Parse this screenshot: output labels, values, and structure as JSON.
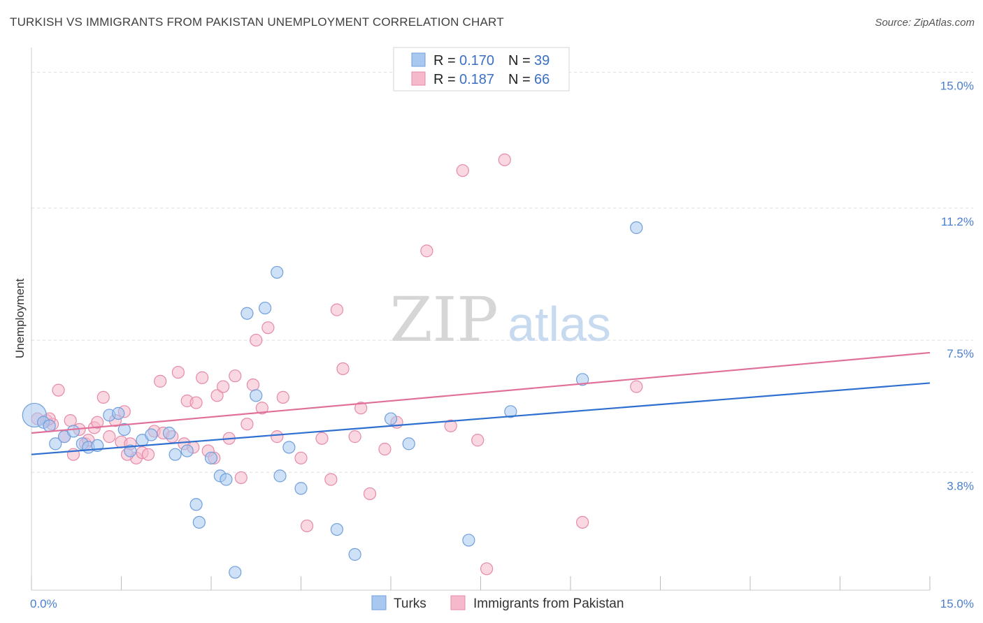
{
  "title": "TURKISH VS IMMIGRANTS FROM PAKISTAN UNEMPLOYMENT CORRELATION CHART",
  "source": "Source: ZipAtlas.com",
  "watermark": {
    "zip": "ZIP",
    "atlas": "atlas"
  },
  "colors": {
    "turks_fill": "#a8c8f0",
    "turks_stroke": "#6f9fdc",
    "turks_line": "#2f6fd0",
    "pak_fill": "#f6b8cb",
    "pak_stroke": "#e58aa8",
    "pak_line": "#e0709a",
    "tick": "#4a7fd0",
    "grid": "#dddddd"
  },
  "legend": {
    "items": [
      {
        "r_label": "R =",
        "r_value": "0.170",
        "n_label": "N =",
        "n_value": "39"
      },
      {
        "r_label": "R =",
        "r_value": "0.187",
        "n_label": "N =",
        "n_value": "66"
      }
    ]
  },
  "bottom_legend": [
    "Turks",
    "Immigrants from Pakistan"
  ],
  "chart_data": {
    "type": "scatter",
    "title": "TURKISH VS IMMIGRANTS FROM PAKISTAN UNEMPLOYMENT CORRELATION CHART",
    "xlabel": "",
    "ylabel": "Unemployment",
    "xlim": [
      0,
      15
    ],
    "ylim": [
      0.5,
      15.5
    ],
    "x_ticks": [
      {
        "value": 0,
        "label": "0.0%"
      },
      {
        "value": 15,
        "label": "15.0%"
      }
    ],
    "y_ticks": [
      {
        "value": 3.8,
        "label": "3.8%"
      },
      {
        "value": 7.5,
        "label": "7.5%"
      },
      {
        "value": 11.2,
        "label": "11.2%"
      },
      {
        "value": 15.0,
        "label": "15.0%"
      }
    ],
    "grid": true,
    "legend_position": "top-center",
    "series": [
      {
        "name": "Turks",
        "r": 0.17,
        "n": 39,
        "trend": {
          "x": [
            0,
            15
          ],
          "y": [
            4.3,
            6.3
          ]
        },
        "points": [
          {
            "x": 0.05,
            "y": 5.4,
            "big": true
          },
          {
            "x": 0.2,
            "y": 5.2
          },
          {
            "x": 0.4,
            "y": 4.6
          },
          {
            "x": 0.55,
            "y": 4.8
          },
          {
            "x": 0.7,
            "y": 4.95
          },
          {
            "x": 0.85,
            "y": 4.6
          },
          {
            "x": 0.95,
            "y": 4.5
          },
          {
            "x": 1.1,
            "y": 4.55
          },
          {
            "x": 1.3,
            "y": 5.4
          },
          {
            "x": 1.45,
            "y": 5.45
          },
          {
            "x": 1.55,
            "y": 5.0
          },
          {
            "x": 1.65,
            "y": 4.4
          },
          {
            "x": 1.85,
            "y": 4.7
          },
          {
            "x": 2.0,
            "y": 4.85
          },
          {
            "x": 2.3,
            "y": 4.9
          },
          {
            "x": 2.4,
            "y": 4.3
          },
          {
            "x": 2.6,
            "y": 4.4
          },
          {
            "x": 2.75,
            "y": 2.9
          },
          {
            "x": 2.8,
            "y": 2.4
          },
          {
            "x": 3.0,
            "y": 4.2
          },
          {
            "x": 3.15,
            "y": 3.7
          },
          {
            "x": 3.25,
            "y": 3.6
          },
          {
            "x": 3.4,
            "y": 1.0
          },
          {
            "x": 3.6,
            "y": 8.25
          },
          {
            "x": 3.75,
            "y": 5.95
          },
          {
            "x": 3.9,
            "y": 8.4
          },
          {
            "x": 4.1,
            "y": 9.4
          },
          {
            "x": 4.15,
            "y": 3.7
          },
          {
            "x": 4.3,
            "y": 4.5
          },
          {
            "x": 4.5,
            "y": 3.35
          },
          {
            "x": 5.1,
            "y": 2.2
          },
          {
            "x": 5.4,
            "y": 1.5
          },
          {
            "x": 6.0,
            "y": 5.3
          },
          {
            "x": 6.3,
            "y": 4.6
          },
          {
            "x": 7.3,
            "y": 1.9
          },
          {
            "x": 8.0,
            "y": 5.5
          },
          {
            "x": 9.2,
            "y": 6.4
          },
          {
            "x": 10.1,
            "y": 10.65
          },
          {
            "x": 0.3,
            "y": 5.1
          }
        ]
      },
      {
        "name": "Immigrants from Pakistan",
        "r": 0.187,
        "n": 66,
        "trend": {
          "x": [
            0,
            15
          ],
          "y": [
            4.9,
            7.15
          ]
        },
        "points": [
          {
            "x": 0.1,
            "y": 5.3
          },
          {
            "x": 0.25,
            "y": 5.25
          },
          {
            "x": 0.35,
            "y": 5.15
          },
          {
            "x": 0.45,
            "y": 6.1
          },
          {
            "x": 0.55,
            "y": 4.8
          },
          {
            "x": 0.65,
            "y": 5.25
          },
          {
            "x": 0.7,
            "y": 4.3
          },
          {
            "x": 0.8,
            "y": 5.0
          },
          {
            "x": 0.9,
            "y": 4.6
          },
          {
            "x": 0.95,
            "y": 4.7
          },
          {
            "x": 1.05,
            "y": 5.05
          },
          {
            "x": 1.1,
            "y": 5.2
          },
          {
            "x": 1.2,
            "y": 5.9
          },
          {
            "x": 1.3,
            "y": 4.8
          },
          {
            "x": 1.4,
            "y": 5.25
          },
          {
            "x": 1.5,
            "y": 4.65
          },
          {
            "x": 1.55,
            "y": 5.5
          },
          {
            "x": 1.65,
            "y": 4.6
          },
          {
            "x": 1.75,
            "y": 4.2
          },
          {
            "x": 1.85,
            "y": 4.35
          },
          {
            "x": 1.95,
            "y": 4.3
          },
          {
            "x": 2.05,
            "y": 4.95
          },
          {
            "x": 2.15,
            "y": 6.35
          },
          {
            "x": 2.2,
            "y": 4.9
          },
          {
            "x": 2.35,
            "y": 4.8
          },
          {
            "x": 2.45,
            "y": 6.6
          },
          {
            "x": 2.55,
            "y": 4.6
          },
          {
            "x": 2.6,
            "y": 5.8
          },
          {
            "x": 2.75,
            "y": 5.75
          },
          {
            "x": 2.85,
            "y": 6.45
          },
          {
            "x": 2.95,
            "y": 4.4
          },
          {
            "x": 3.05,
            "y": 4.2
          },
          {
            "x": 3.1,
            "y": 5.95
          },
          {
            "x": 3.2,
            "y": 6.2
          },
          {
            "x": 3.3,
            "y": 4.75
          },
          {
            "x": 3.4,
            "y": 6.5
          },
          {
            "x": 3.5,
            "y": 3.65
          },
          {
            "x": 3.6,
            "y": 5.15
          },
          {
            "x": 3.7,
            "y": 6.25
          },
          {
            "x": 3.75,
            "y": 7.5
          },
          {
            "x": 3.85,
            "y": 5.6
          },
          {
            "x": 3.95,
            "y": 7.85
          },
          {
            "x": 4.1,
            "y": 4.8
          },
          {
            "x": 4.2,
            "y": 5.9
          },
          {
            "x": 4.5,
            "y": 4.2
          },
          {
            "x": 4.6,
            "y": 2.3
          },
          {
            "x": 5.0,
            "y": 3.6
          },
          {
            "x": 5.1,
            "y": 8.35
          },
          {
            "x": 5.2,
            "y": 6.7
          },
          {
            "x": 5.4,
            "y": 4.8
          },
          {
            "x": 5.5,
            "y": 5.6
          },
          {
            "x": 5.65,
            "y": 3.2
          },
          {
            "x": 5.9,
            "y": 4.45
          },
          {
            "x": 6.1,
            "y": 5.2
          },
          {
            "x": 6.6,
            "y": 10.0
          },
          {
            "x": 7.0,
            "y": 5.1
          },
          {
            "x": 7.2,
            "y": 12.25
          },
          {
            "x": 7.45,
            "y": 4.7
          },
          {
            "x": 7.6,
            "y": 1.1
          },
          {
            "x": 7.9,
            "y": 12.55
          },
          {
            "x": 9.2,
            "y": 2.4
          },
          {
            "x": 10.1,
            "y": 6.2
          },
          {
            "x": 0.3,
            "y": 5.3
          },
          {
            "x": 1.6,
            "y": 4.3
          },
          {
            "x": 2.7,
            "y": 4.5
          },
          {
            "x": 4.85,
            "y": 4.75
          }
        ]
      }
    ]
  }
}
